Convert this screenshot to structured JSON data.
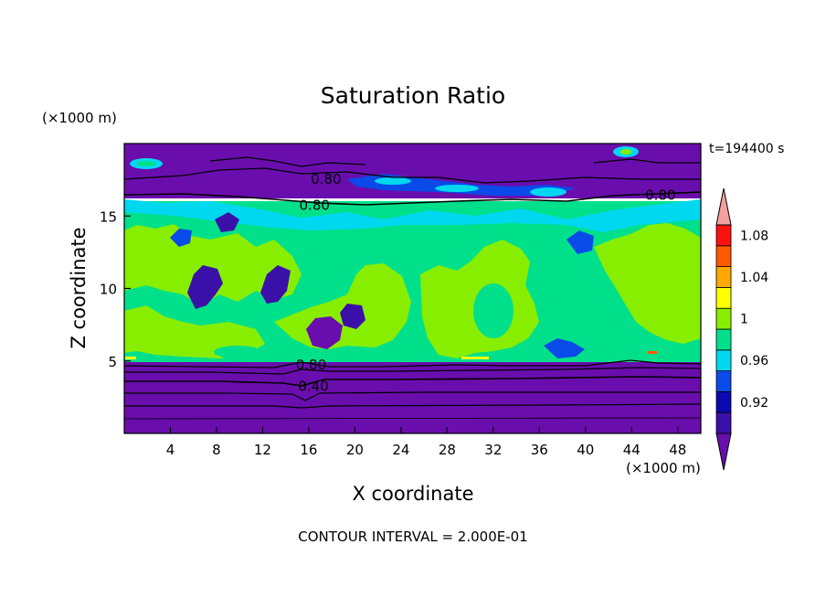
{
  "chart_data": {
    "type": "heatmap",
    "title": "Saturation Ratio",
    "xlabel": "X coordinate",
    "ylabel": "Z coordinate",
    "x_unit": "(×1000 m)",
    "y_unit": "(×1000 m)",
    "time_label": "t=194400 s",
    "footer": "CONTOUR INTERVAL = 2.000E-01",
    "xlim": [
      0,
      50
    ],
    "ylim": [
      0,
      20
    ],
    "x_ticks": [
      4,
      8,
      12,
      16,
      20,
      24,
      28,
      32,
      36,
      40,
      44,
      48
    ],
    "y_ticks": [
      5,
      10,
      15
    ],
    "colorbar": {
      "levels": [
        0.9,
        0.92,
        0.94,
        0.96,
        0.98,
        1.0,
        1.02,
        1.04,
        1.06,
        1.08,
        1.1
      ],
      "tick_labels": [
        "0.92",
        "0.96",
        "1",
        "1.04",
        "1.08"
      ],
      "tick_values": [
        0.92,
        0.96,
        1.0,
        1.04,
        1.08
      ],
      "colors": [
        "#6a0dad",
        "#3a10a8",
        "#0a0ab0",
        "#0a4ae8",
        "#00d8f0",
        "#00e08a",
        "#88ee00",
        "#ffff00",
        "#ffa800",
        "#ff5a00",
        "#ff1010",
        "#f4a0a0"
      ]
    },
    "contour_labels": [
      {
        "text": "0.80",
        "x": 17.5,
        "z": 17.6
      },
      {
        "text": "0.80",
        "x": 16.5,
        "z": 15.8
      },
      {
        "text": "0.80",
        "x": 46.5,
        "z": 16.5
      },
      {
        "text": "0.80",
        "x": 16.2,
        "z": 4.8
      },
      {
        "text": "0.40",
        "x": 16.4,
        "z": 3.3
      }
    ]
  }
}
